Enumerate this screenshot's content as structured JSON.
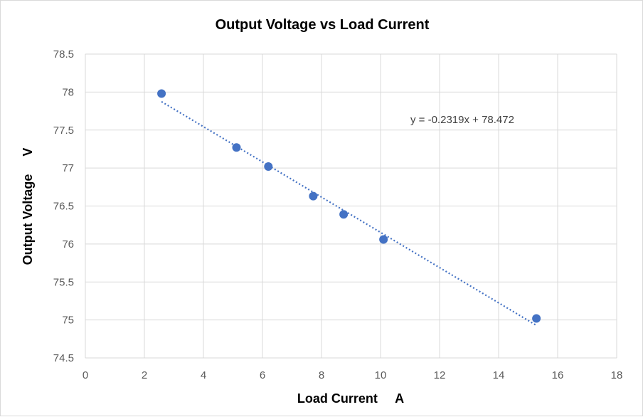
{
  "chart_data": {
    "type": "scatter",
    "title": "Output Voltage vs Load Current",
    "xlabel": "Load Current     A",
    "ylabel": "Output Voltage     V",
    "xlim": [
      0,
      18
    ],
    "ylim": [
      74.5,
      78.5
    ],
    "xticks": [
      "0",
      "2",
      "4",
      "6",
      "8",
      "10",
      "12",
      "14",
      "16",
      "18"
    ],
    "yticks": [
      "74.5",
      "75",
      "75.5",
      "76",
      "76.5",
      "77",
      "77.5",
      "78",
      "78.5"
    ],
    "grid": true,
    "marker_color": "#4472c4",
    "series": [
      {
        "x": [
          2.58,
          5.12,
          6.2,
          7.72,
          8.75,
          10.1,
          15.28
        ],
        "y": [
          77.98,
          77.27,
          77.02,
          76.63,
          76.39,
          76.06,
          75.02
        ]
      }
    ],
    "trendline": {
      "type": "linear",
      "slope": -0.2319,
      "intercept": 78.472,
      "x_range": [
        2.58,
        15.28
      ],
      "style": "dotted",
      "color": "#4472c4",
      "equation_label": "y = -0.2319x + 78.472"
    }
  }
}
